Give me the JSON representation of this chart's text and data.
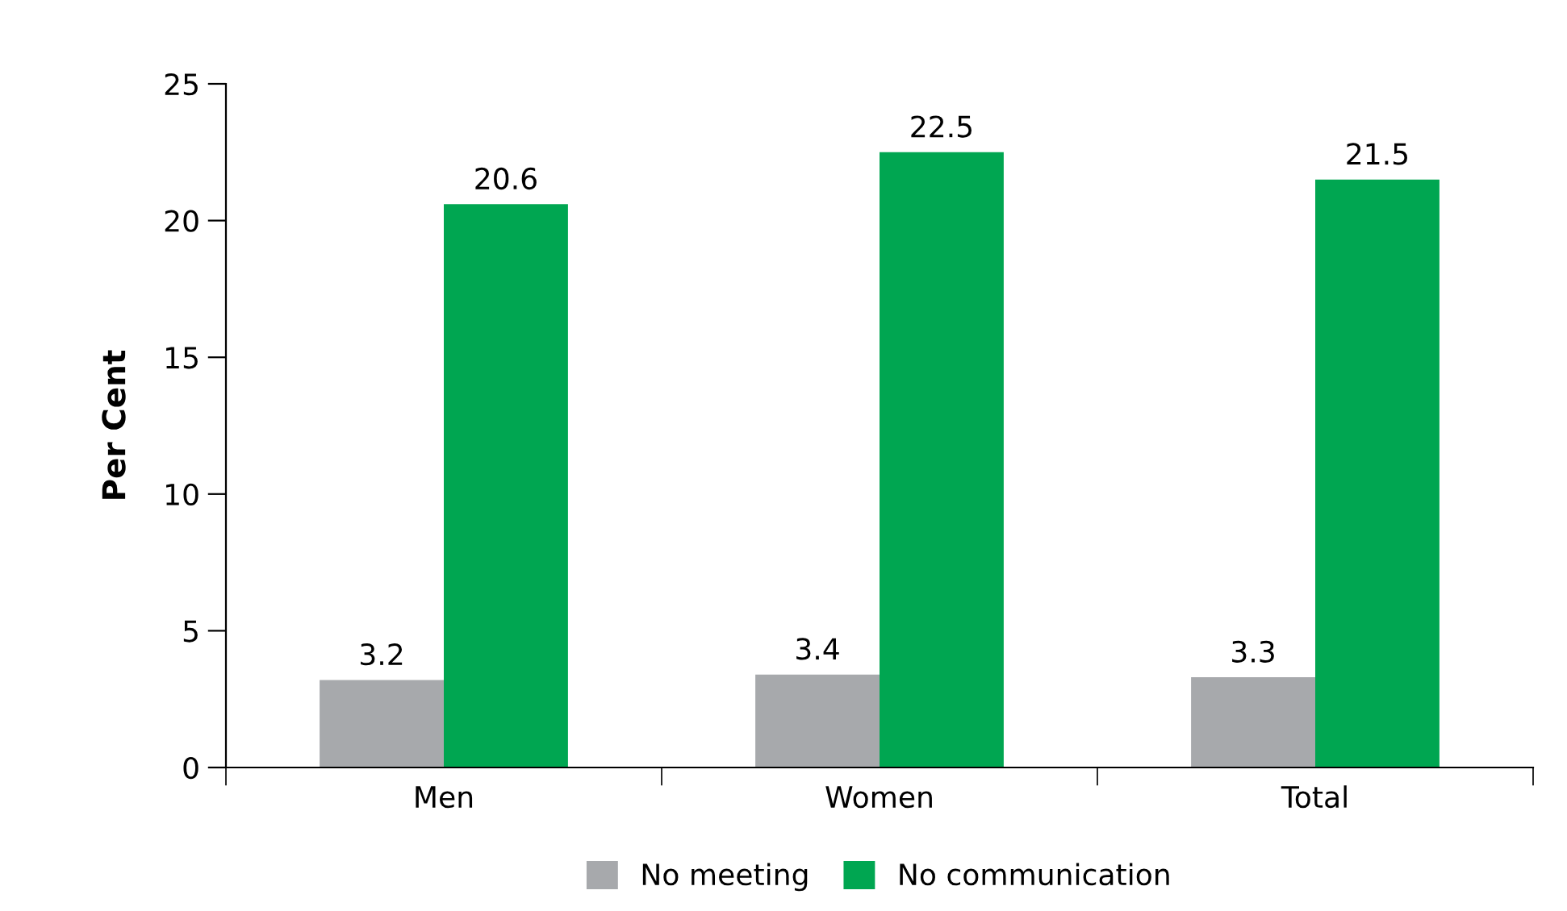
{
  "chart_data": {
    "type": "bar",
    "ylabel": "Per Cent",
    "categories": [
      "Men",
      "Women",
      "Total"
    ],
    "series": [
      {
        "name": "No meeting",
        "color": "#a7a9ac",
        "values": [
          3.2,
          3.4,
          3.3
        ]
      },
      {
        "name": "No communication",
        "color": "#00a651",
        "values": [
          20.6,
          22.5,
          21.5
        ]
      }
    ],
    "ylim": [
      0,
      25
    ],
    "yticks": [
      0,
      5,
      10,
      15,
      20,
      25
    ],
    "grid": false,
    "legend": "bottom",
    "data_labels": true
  }
}
